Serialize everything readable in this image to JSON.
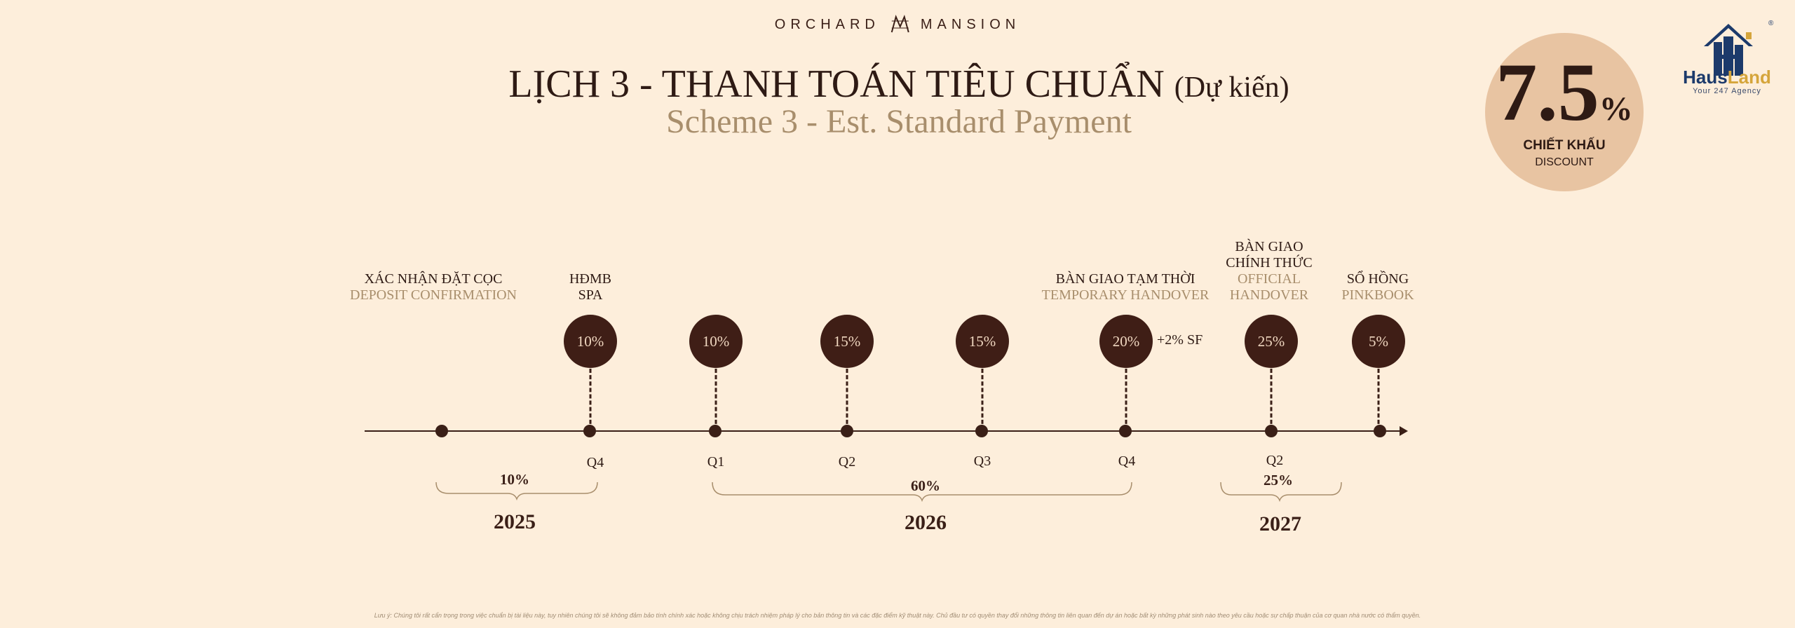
{
  "header": {
    "brand_left": "ORCHARD",
    "brand_right": "MANSION",
    "title_vn": "LỊCH 3 - THANH TOÁN TIÊU CHUẨN",
    "title_vn_note": "(Dự kiến)",
    "title_en": "Scheme 3 - Est. Standard Payment"
  },
  "discount": {
    "value": "7.5",
    "unit": "%",
    "label_vn": "CHIẾT KHẤU",
    "label_en": "DISCOUNT"
  },
  "logo": {
    "name_part1": "Haus",
    "name_part2": "Land",
    "registered": "®",
    "tagline": "Your 247 Agency",
    "icon": "building-logo-icon"
  },
  "milestones": [
    {
      "label_vn": "XÁC NHẬN ĐẶT CỌC",
      "label_en": "DEPOSIT CONFIRMATION"
    },
    {
      "label_vn": "HĐMB",
      "label_vn2": "SPA",
      "percent": "10%",
      "quarter": "Q4"
    },
    {
      "percent": "10%",
      "quarter": "Q1"
    },
    {
      "percent": "15%",
      "quarter": "Q2"
    },
    {
      "percent": "15%",
      "quarter": "Q3"
    },
    {
      "label_vn": "BÀN GIAO TẠM THỜI",
      "label_en": "TEMPORARY HANDOVER",
      "percent": "20%",
      "extra": "+2% SF",
      "quarter": "Q4"
    },
    {
      "label_vn": "BÀN GIAO",
      "label_vn2": "CHÍNH THỨC",
      "label_en": "OFFICIAL",
      "label_en2": "HANDOVER",
      "percent": "25%",
      "quarter": "Q2"
    },
    {
      "label_vn": "SỔ HỒNG",
      "label_en": "PINKBOOK",
      "percent": "5%"
    }
  ],
  "groups": [
    {
      "percent": "10%",
      "year": "2025"
    },
    {
      "percent": "60%",
      "year": "2026"
    },
    {
      "percent": "25%",
      "year": "2027"
    }
  ],
  "disclaimer": "Lưu ý: Chúng tôi rất cẩn trọng trong việc chuẩn bị tài liệu này, tuy nhiên chúng tôi sẽ không đảm bảo tính chính xác hoặc không chịu trách nhiệm pháp lý cho bản thông tin và các đặc điểm kỹ thuật này. Chủ đầu tư có quyền thay đổi những thông tin liên quan đến dự án hoặc bất kỳ những phát sinh nào theo yêu cầu hoặc sự chấp thuận của cơ quan nhà nước có thẩm quyền."
}
